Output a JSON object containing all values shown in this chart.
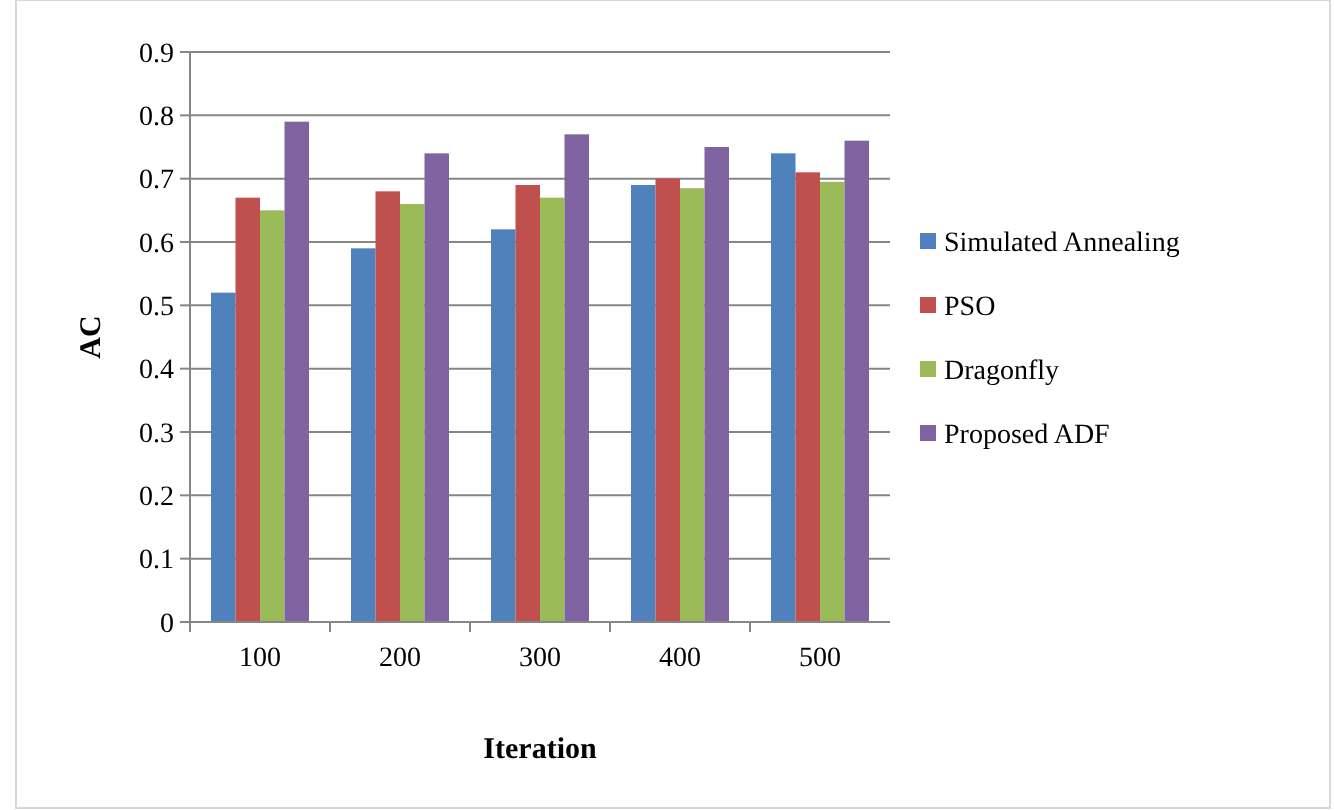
{
  "chart_data": {
    "type": "bar",
    "xlabel": "Iteration",
    "ylabel": "AC",
    "categories": [
      "100",
      "200",
      "300",
      "400",
      "500"
    ],
    "series": [
      {
        "name": "Simulated Annealing",
        "color": "#4f81bd",
        "values": [
          0.52,
          0.59,
          0.62,
          0.69,
          0.74
        ]
      },
      {
        "name": "PSO",
        "color": "#c0504d",
        "values": [
          0.67,
          0.68,
          0.69,
          0.7,
          0.71
        ]
      },
      {
        "name": "Dragonfly",
        "color": "#9bbb59",
        "values": [
          0.65,
          0.66,
          0.67,
          0.685,
          0.695
        ]
      },
      {
        "name": "Proposed ADF",
        "color": "#8064a2",
        "values": [
          0.79,
          0.74,
          0.77,
          0.75,
          0.76
        ]
      }
    ],
    "ylim": [
      0,
      0.9
    ],
    "yticks": [
      0,
      0.1,
      0.2,
      0.3,
      0.4,
      0.5,
      0.6,
      0.7,
      0.8,
      0.9
    ],
    "grid": "y",
    "legend": "right"
  }
}
